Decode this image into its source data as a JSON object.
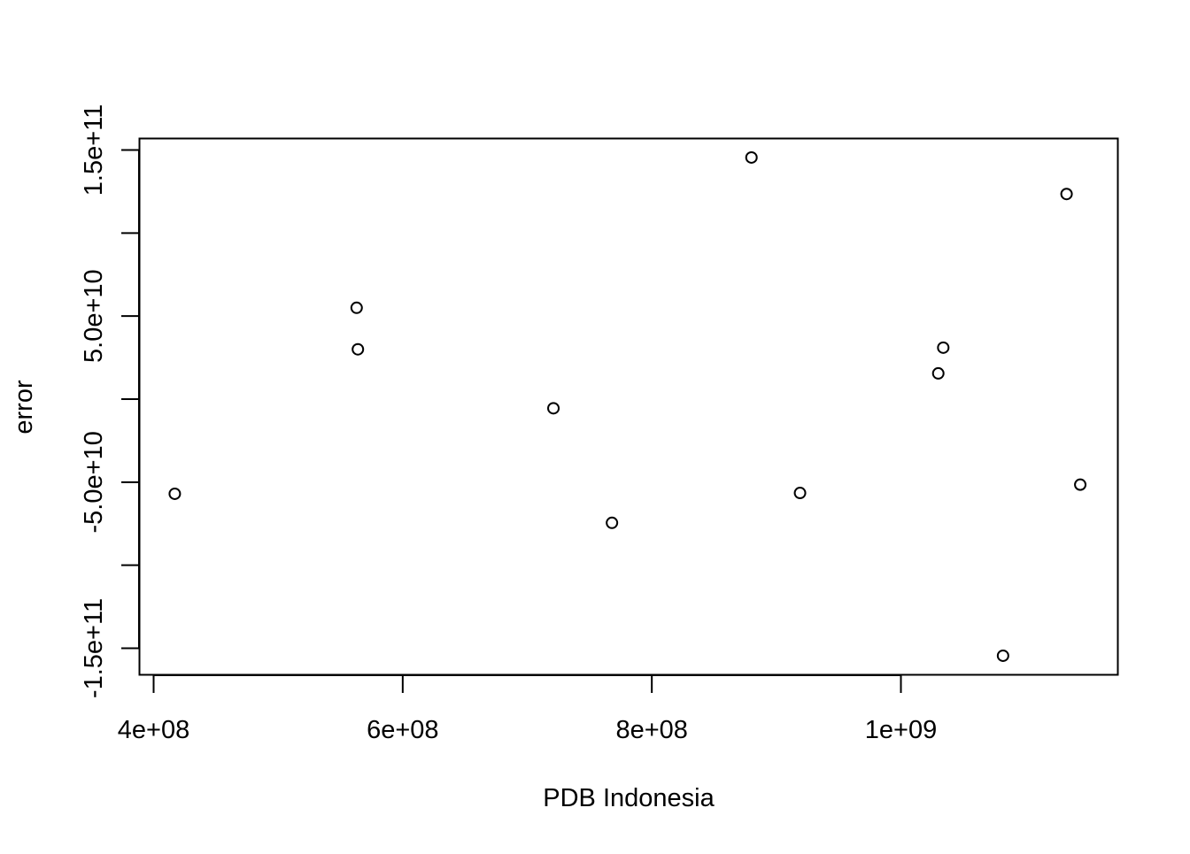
{
  "chart_data": {
    "type": "scatter",
    "title": "",
    "xlabel": "PDB Indonesia",
    "ylabel": "error",
    "xlim": [
      380000000,
      1165000000
    ],
    "ylim": [
      -155000000000,
      155000000000
    ],
    "x_ticks": [
      {
        "value": 400000000,
        "label": "4e+08"
      },
      {
        "value": 600000000,
        "label": "6e+08"
      },
      {
        "value": 800000000,
        "label": "8e+08"
      },
      {
        "value": 1000000000,
        "label": "1e+09"
      }
    ],
    "y_ticks": [
      {
        "value": -150000000000,
        "label": "-1.5e+11"
      },
      {
        "value": -100000000000,
        "label": ""
      },
      {
        "value": -50000000000,
        "label": "-5.0e+10"
      },
      {
        "value": 0,
        "label": ""
      },
      {
        "value": 50000000000,
        "label": "5.0e+10"
      },
      {
        "value": 100000000000,
        "label": ""
      },
      {
        "value": 150000000000,
        "label": "1.5e+11"
      }
    ],
    "grid": false,
    "marker": "open-circle",
    "points": [
      {
        "x": 417000000,
        "y": -57000000000
      },
      {
        "x": 563000000,
        "y": 55000000000
      },
      {
        "x": 564000000,
        "y": 30000000000
      },
      {
        "x": 721000000,
        "y": -5500000000
      },
      {
        "x": 768000000,
        "y": -74500000000
      },
      {
        "x": 880000000,
        "y": 145500000000
      },
      {
        "x": 919000000,
        "y": -56500000000
      },
      {
        "x": 1030000000,
        "y": 15500000000
      },
      {
        "x": 1034000000,
        "y": 31000000000
      },
      {
        "x": 1082000000,
        "y": -154500000000
      },
      {
        "x": 1133000000,
        "y": 123500000000
      },
      {
        "x": 1144000000,
        "y": -51500000000
      }
    ]
  }
}
